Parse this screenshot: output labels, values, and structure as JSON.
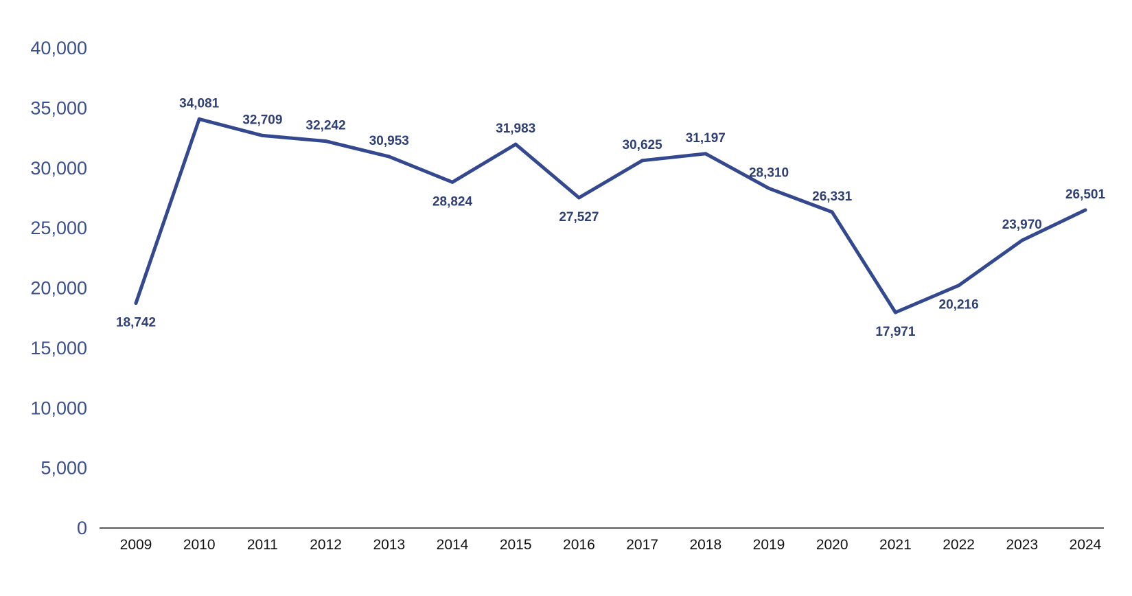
{
  "chart_data": {
    "type": "line",
    "x": [
      "2009",
      "2010",
      "2011",
      "2012",
      "2013",
      "2014",
      "2015",
      "2016",
      "2017",
      "2018",
      "2019",
      "2020",
      "2021",
      "2022",
      "2023",
      "2024"
    ],
    "series": [
      {
        "values": [
          18742,
          34081,
          32709,
          32242,
          30953,
          28824,
          31983,
          27527,
          30625,
          31197,
          28310,
          26331,
          17971,
          20216,
          23970,
          26501
        ],
        "labels": [
          "18,742",
          "34,081",
          "32,709",
          "32,242",
          "30,953",
          "28,824",
          "31,983",
          "27,527",
          "30,625",
          "31,197",
          "28,310",
          "26,331",
          "17,971",
          "20,216",
          "23,970",
          "26,501"
        ],
        "label_position": [
          "below",
          "above",
          "above",
          "above",
          "above",
          "below",
          "above",
          "below",
          "above",
          "above",
          "above",
          "above",
          "below",
          "below",
          "above",
          "above"
        ]
      }
    ],
    "yticks": [
      "0",
      "5,000",
      "10,000",
      "15,000",
      "20,000",
      "25,000",
      "30,000",
      "35,000",
      "40,000"
    ],
    "ylim": [
      0,
      40000
    ],
    "title": "",
    "xlabel": "",
    "ylabel": "",
    "grid": false,
    "legend": "none",
    "colors": {
      "line": "#34488f",
      "axis": "#222222",
      "ytick": "#3b4f8f",
      "xtick": "#111111",
      "data_label": "#2f3f76"
    }
  }
}
